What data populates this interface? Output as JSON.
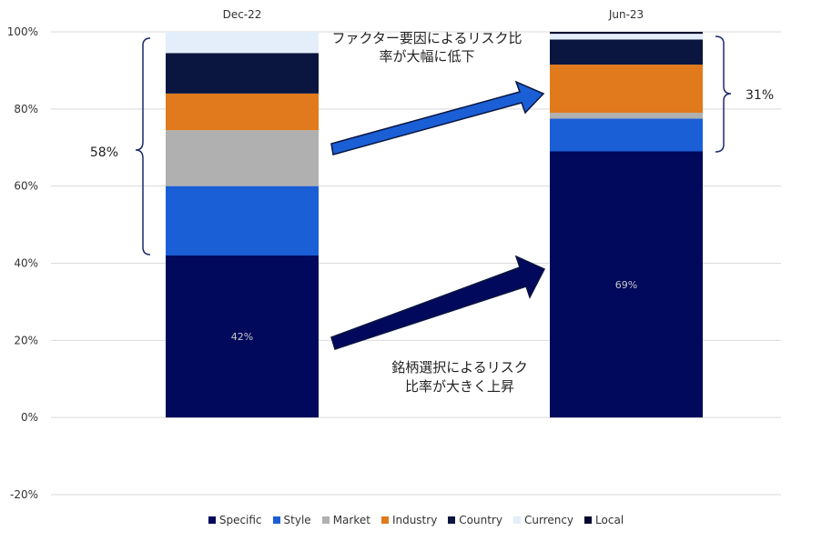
{
  "chart_data": {
    "type": "bar",
    "stacked": true,
    "categories": [
      "Dec-22",
      "Jun-23"
    ],
    "ylim": [
      -20,
      100
    ],
    "yticks": [
      "-20%",
      "0%",
      "20%",
      "40%",
      "60%",
      "80%",
      "100%"
    ],
    "grid": true,
    "legend_position": "bottom",
    "series": [
      {
        "name": "Specific",
        "color": "#00095b",
        "values": [
          42,
          69
        ],
        "labels": [
          "42%",
          "69%"
        ]
      },
      {
        "name": "Style",
        "color": "#1a5fd6",
        "values": [
          18,
          8.5
        ],
        "labels": [
          "",
          ""
        ]
      },
      {
        "name": "Market",
        "color": "#b0b0b0",
        "values": [
          14.5,
          1.5
        ],
        "labels": [
          "",
          ""
        ]
      },
      {
        "name": "Industry",
        "color": "#e07a1c",
        "values": [
          9.5,
          12.5
        ],
        "labels": [
          "",
          ""
        ]
      },
      {
        "name": "Country",
        "color": "#0a1540",
        "values": [
          10.5,
          6.5
        ],
        "labels": [
          "",
          ""
        ]
      },
      {
        "name": "Currency",
        "color": "#e3eefa",
        "values": [
          5.5,
          1.5
        ],
        "labels": [
          "",
          ""
        ]
      },
      {
        "name": "Local",
        "color": "#02052e",
        "values": [
          0,
          0.5
        ],
        "labels": [
          "",
          ""
        ]
      }
    ],
    "annotations": {
      "left_brace_label": "58%",
      "right_brace_label": "31%",
      "top_note": [
        "ファクター要因によるリスク比",
        "率が大幅に低下"
      ],
      "bottom_note": [
        "銘柄選択によるリスク",
        "比率が大きく上昇"
      ],
      "top_arrow_color": "#1a5fd6",
      "bottom_arrow_color": "#00095b"
    }
  }
}
